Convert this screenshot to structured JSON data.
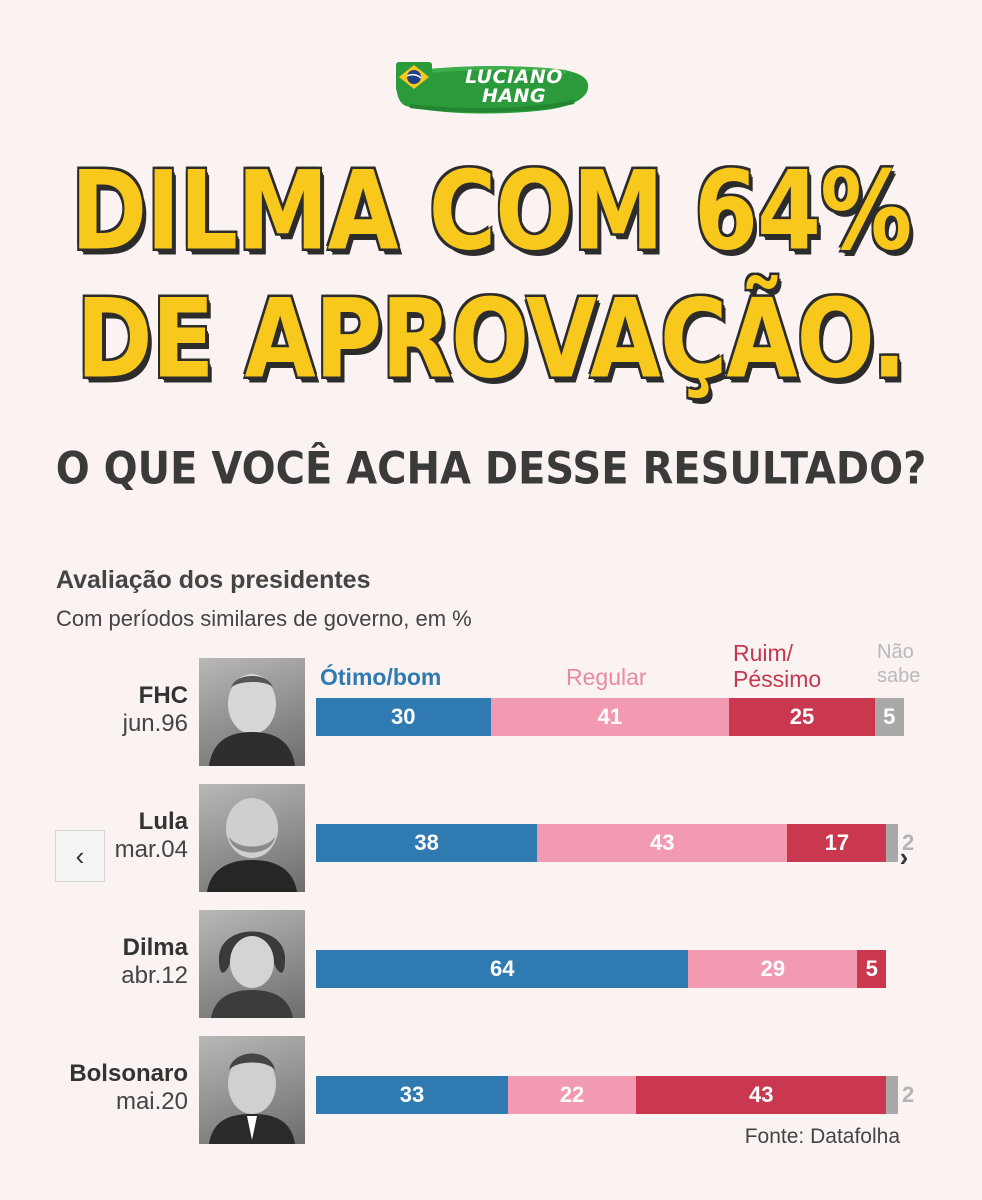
{
  "brand": {
    "logo_line1": "LUCIANO",
    "logo_line2": "HANG",
    "colors": {
      "green": "#2a9a3a",
      "yellow": "#f8c81d",
      "blue": "#1f3f8a"
    }
  },
  "headline": {
    "line1": "DILMA COM 64%",
    "line2": "DE APROVAÇÃO.",
    "question": "O QUE VOCÊ ACHA DESSE RESULTADO?",
    "color": "#f8c81d"
  },
  "chart_data": {
    "type": "bar",
    "orientation": "horizontal-stacked",
    "title": "Avaliação dos presidentes",
    "subtitle": "Com períodos similares de governo, em %",
    "categories": [
      {
        "name": "FHC",
        "date": "jun.96"
      },
      {
        "name": "Lula",
        "date": "mar.04"
      },
      {
        "name": "Dilma",
        "date": "abr.12"
      },
      {
        "name": "Bolsonaro",
        "date": "mai.20"
      }
    ],
    "legend": {
      "otimo": "Ótimo/bom",
      "regular": "Regular",
      "ruim_line1": "Ruim/",
      "ruim_line2": "Péssimo",
      "nao_line1": "Não",
      "nao_line2": "sabe"
    },
    "series": [
      {
        "name": "Ótimo/bom",
        "color": "#2f7ab0",
        "values": [
          30,
          38,
          64,
          33
        ]
      },
      {
        "name": "Regular",
        "color": "#f29ab2",
        "values": [
          41,
          43,
          29,
          22
        ]
      },
      {
        "name": "Ruim/Péssimo",
        "color": "#c9384f",
        "values": [
          25,
          17,
          5,
          43
        ]
      },
      {
        "name": "Não sabe",
        "color": "#a9a9a9",
        "values": [
          5,
          2,
          0,
          2
        ]
      }
    ],
    "source": "Fonte: Datafolha"
  },
  "nav": {
    "prev_glyph": "‹",
    "next_glyph": "›"
  }
}
